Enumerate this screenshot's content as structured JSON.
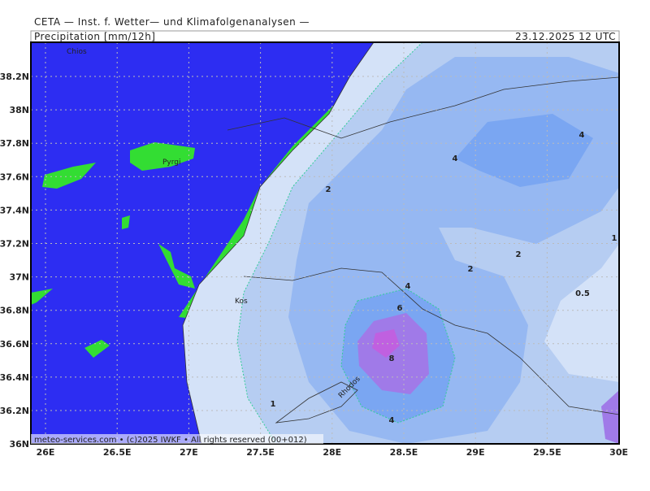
{
  "header": {
    "title": "CETA — Inst. f. Wetter— und Klimafolgenanalysen —",
    "variable": "Precipitation [mm/12h]",
    "valid_time": "23.12.2025 12 UTC"
  },
  "axes": {
    "lat_labels": [
      "38.2N",
      "38N",
      "37.8N",
      "37.6N",
      "37.4N",
      "37.2N",
      "37N",
      "36.8N",
      "36.6N",
      "36.4N",
      "36.2N",
      "36N"
    ],
    "lon_labels": [
      "26E",
      "26.5E",
      "27E",
      "27.5E",
      "28E",
      "28.5E",
      "29E",
      "29.5E",
      "30E"
    ]
  },
  "contour_labels": [
    2,
    4,
    4,
    1,
    2,
    2,
    0.5,
    4,
    6,
    8,
    4,
    1
  ],
  "places": [
    "Chios",
    "Pyrgi",
    "Kos",
    "Rhodos"
  ],
  "footer": "meteo-services.com • (c)2025 IWKF • All rights reserved (00+012)"
}
